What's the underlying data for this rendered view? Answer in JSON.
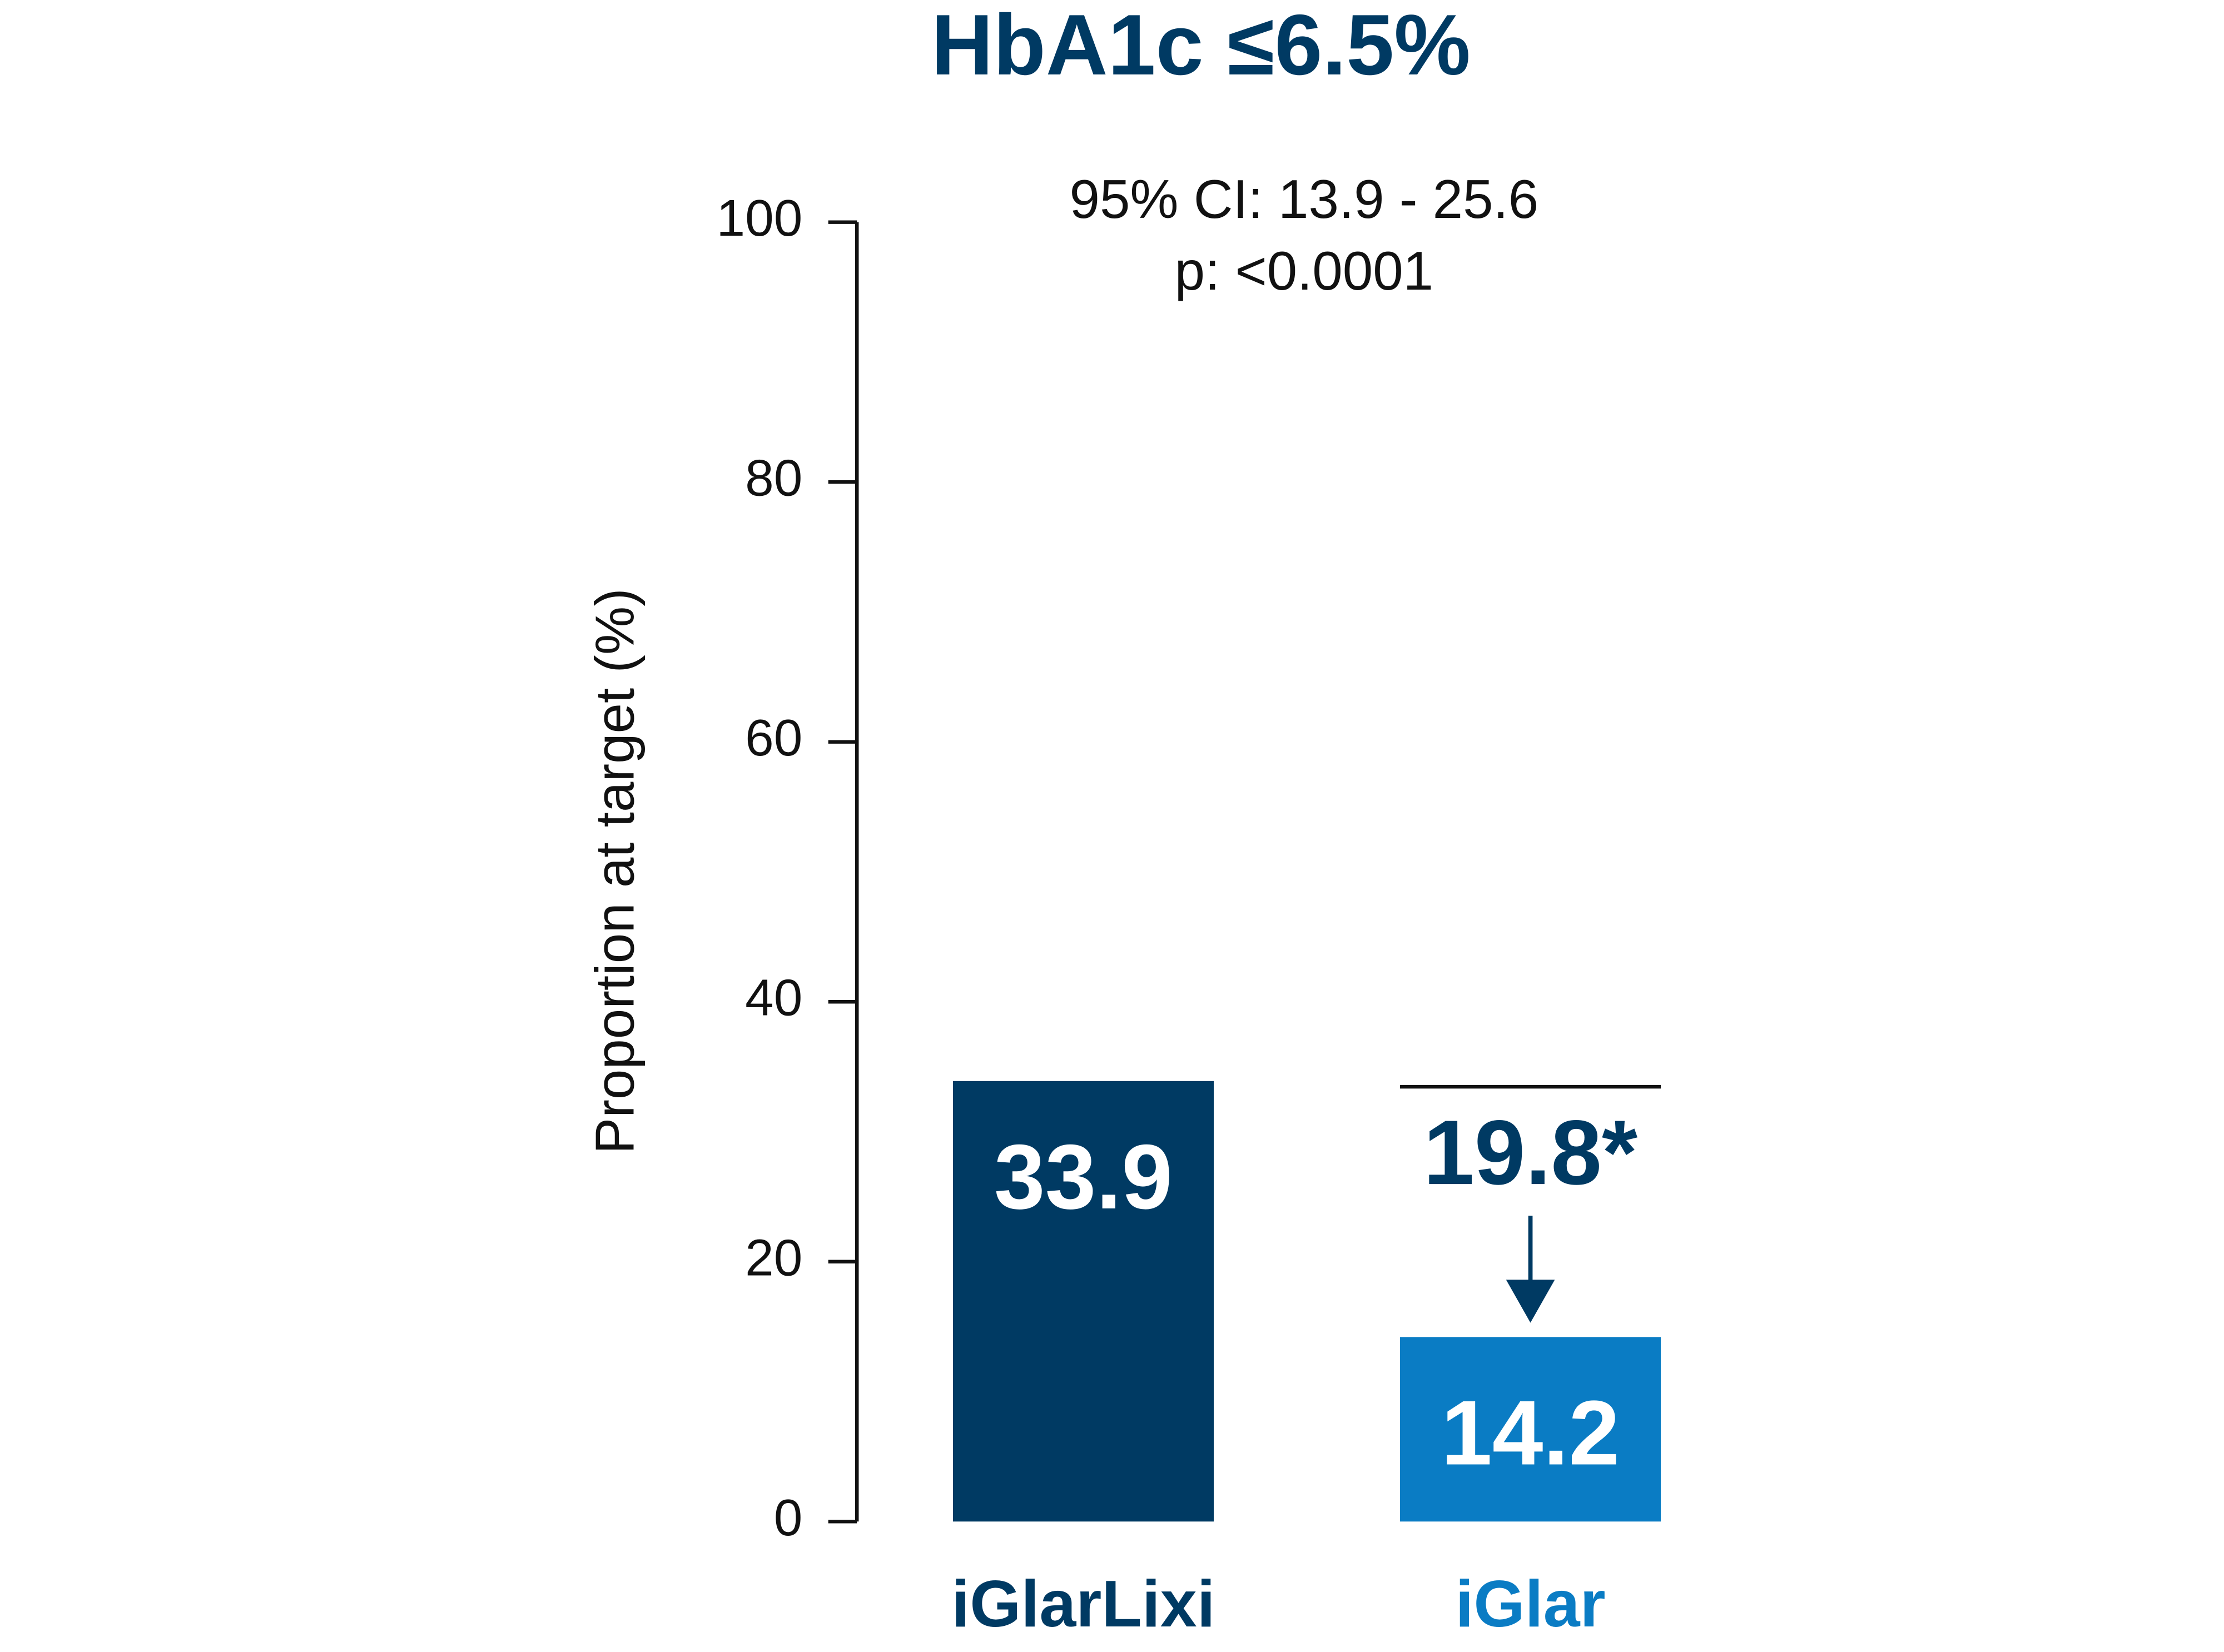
{
  "chart_data": {
    "type": "bar",
    "title": "HbA1c ≤6.5%",
    "y_label": "Proportion at target (%)",
    "annotations": [
      "95% CI: 13.9 - 25.6",
      "p: <0.0001",
      "19.8*"
    ],
    "categories": [
      "iGlarLixi",
      "iGlar"
    ],
    "values": [
      33.9,
      14.2
    ],
    "colors": [
      "#003a63",
      "#0a7cc4"
    ],
    "title_color": "#003a63",
    "ylim": [
      0,
      100
    ],
    "yticks": [
      0,
      20,
      40,
      60,
      80,
      100
    ],
    "grid": false
  }
}
